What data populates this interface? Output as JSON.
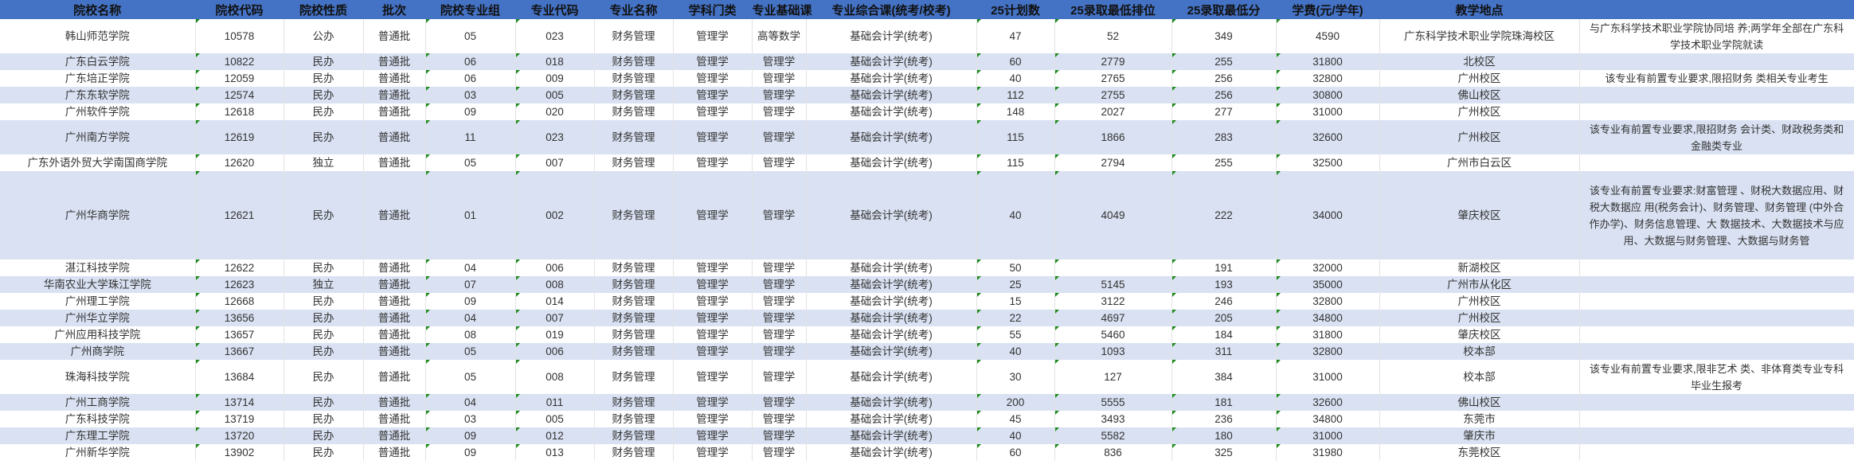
{
  "colors": {
    "header_bg": "#4472c4",
    "alt_row_bg": "#d9e1f2",
    "text_marker": "#1a8a1a"
  },
  "headers": [
    "院校名称",
    "院校代码",
    "院校性质",
    "批次",
    "院校专业组",
    "专业代码",
    "专业名称",
    "学科门类",
    "专业基础课",
    "专业综合课(统考/校考)",
    "25计划数",
    "25录取最低排位",
    "25录取最低分",
    "学费(元/学年)",
    "教学地点",
    ""
  ],
  "rows": [
    [
      "韩山师范学院",
      "10578",
      "公办",
      "普通批",
      "05",
      "023",
      "财务管理",
      "管理学",
      "高等数学",
      "基础会计学(统考)",
      "47",
      "52",
      "349",
      "4590",
      "广东科学技术职业学院珠海校区",
      "与广东科学技术职业学院协同培 养;两学年全部在广东科学技术职业学院就读"
    ],
    [
      "广东白云学院",
      "10822",
      "民办",
      "普通批",
      "06",
      "018",
      "财务管理",
      "管理学",
      "管理学",
      "基础会计学(统考)",
      "60",
      "2779",
      "255",
      "31800",
      "北校区",
      ""
    ],
    [
      "广东培正学院",
      "12059",
      "民办",
      "普通批",
      "06",
      "009",
      "财务管理",
      "管理学",
      "管理学",
      "基础会计学(统考)",
      "40",
      "2765",
      "256",
      "32800",
      "广州校区",
      "该专业有前置专业要求,限招财务 类相关专业考生"
    ],
    [
      "广东东软学院",
      "12574",
      "民办",
      "普通批",
      "03",
      "005",
      "财务管理",
      "管理学",
      "管理学",
      "基础会计学(统考)",
      "112",
      "2755",
      "256",
      "30800",
      "佛山校区",
      ""
    ],
    [
      "广州软件学院",
      "12618",
      "民办",
      "普通批",
      "09",
      "020",
      "财务管理",
      "管理学",
      "管理学",
      "基础会计学(统考)",
      "148",
      "2027",
      "277",
      "31000",
      "广州校区",
      ""
    ],
    [
      "广州南方学院",
      "12619",
      "民办",
      "普通批",
      "11",
      "023",
      "财务管理",
      "管理学",
      "管理学",
      "基础会计学(统考)",
      "115",
      "1866",
      "283",
      "32600",
      "广州校区",
      "该专业有前置专业要求,限招财务 会计类、财政税务类和金融类专业"
    ],
    [
      "广东外语外贸大学南国商学院",
      "12620",
      "独立",
      "普通批",
      "05",
      "007",
      "财务管理",
      "管理学",
      "管理学",
      "基础会计学(统考)",
      "115",
      "2794",
      "255",
      "32500",
      "广州市白云区",
      ""
    ],
    [
      "广州华商学院",
      "12621",
      "民办",
      "普通批",
      "01",
      "002",
      "财务管理",
      "管理学",
      "管理学",
      "基础会计学(统考)",
      "40",
      "4049",
      "222",
      "34000",
      "肇庆校区",
      "该专业有前置专业要求:财富管理 、财税大数据应用、财税大数据应 用(税务会计)、财务管理、财务管理 (中外合作办学)、财务信息管理、大 数据技术、大数据技术与应用、大数据与财务管理、大数据与财务管"
    ],
    [
      "湛江科技学院",
      "12622",
      "民办",
      "普通批",
      "04",
      "006",
      "财务管理",
      "管理学",
      "管理学",
      "基础会计学(统考)",
      "50",
      "",
      "191",
      "32000",
      "新湖校区",
      ""
    ],
    [
      "华南农业大学珠江学院",
      "12623",
      "独立",
      "普通批",
      "07",
      "008",
      "财务管理",
      "管理学",
      "管理学",
      "基础会计学(统考)",
      "25",
      "5145",
      "193",
      "35000",
      "广州市从化区",
      ""
    ],
    [
      "广州理工学院",
      "12668",
      "民办",
      "普通批",
      "09",
      "014",
      "财务管理",
      "管理学",
      "管理学",
      "基础会计学(统考)",
      "15",
      "3122",
      "246",
      "32800",
      "广州校区",
      ""
    ],
    [
      "广州华立学院",
      "13656",
      "民办",
      "普通批",
      "04",
      "007",
      "财务管理",
      "管理学",
      "管理学",
      "基础会计学(统考)",
      "22",
      "4697",
      "205",
      "34800",
      "广州校区",
      ""
    ],
    [
      "广州应用科技学院",
      "13657",
      "民办",
      "普通批",
      "08",
      "019",
      "财务管理",
      "管理学",
      "管理学",
      "基础会计学(统考)",
      "55",
      "5460",
      "184",
      "31800",
      "肇庆校区",
      ""
    ],
    [
      "广州商学院",
      "13667",
      "民办",
      "普通批",
      "05",
      "006",
      "财务管理",
      "管理学",
      "管理学",
      "基础会计学(统考)",
      "40",
      "1093",
      "311",
      "32800",
      "校本部",
      ""
    ],
    [
      "珠海科技学院",
      "13684",
      "民办",
      "普通批",
      "05",
      "008",
      "财务管理",
      "管理学",
      "管理学",
      "基础会计学(统考)",
      "30",
      "127",
      "384",
      "31000",
      "校本部",
      "该专业有前置专业要求,限非艺术 类、非体育类专业专科毕业生报考"
    ],
    [
      "广州工商学院",
      "13714",
      "民办",
      "普通批",
      "04",
      "011",
      "财务管理",
      "管理学",
      "管理学",
      "基础会计学(统考)",
      "200",
      "5555",
      "181",
      "32600",
      "佛山校区",
      ""
    ],
    [
      "广东科技学院",
      "13719",
      "民办",
      "普通批",
      "03",
      "005",
      "财务管理",
      "管理学",
      "管理学",
      "基础会计学(统考)",
      "45",
      "3493",
      "236",
      "34800",
      "东莞市",
      ""
    ],
    [
      "广东理工学院",
      "13720",
      "民办",
      "普通批",
      "09",
      "012",
      "财务管理",
      "管理学",
      "管理学",
      "基础会计学(统考)",
      "40",
      "5582",
      "180",
      "31000",
      "肇庆市",
      ""
    ],
    [
      "广州新华学院",
      "13902",
      "民办",
      "普通批",
      "09",
      "013",
      "财务管理",
      "管理学",
      "管理学",
      "基础会计学(统考)",
      "60",
      "836",
      "325",
      "31980",
      "东莞校区",
      ""
    ]
  ]
}
